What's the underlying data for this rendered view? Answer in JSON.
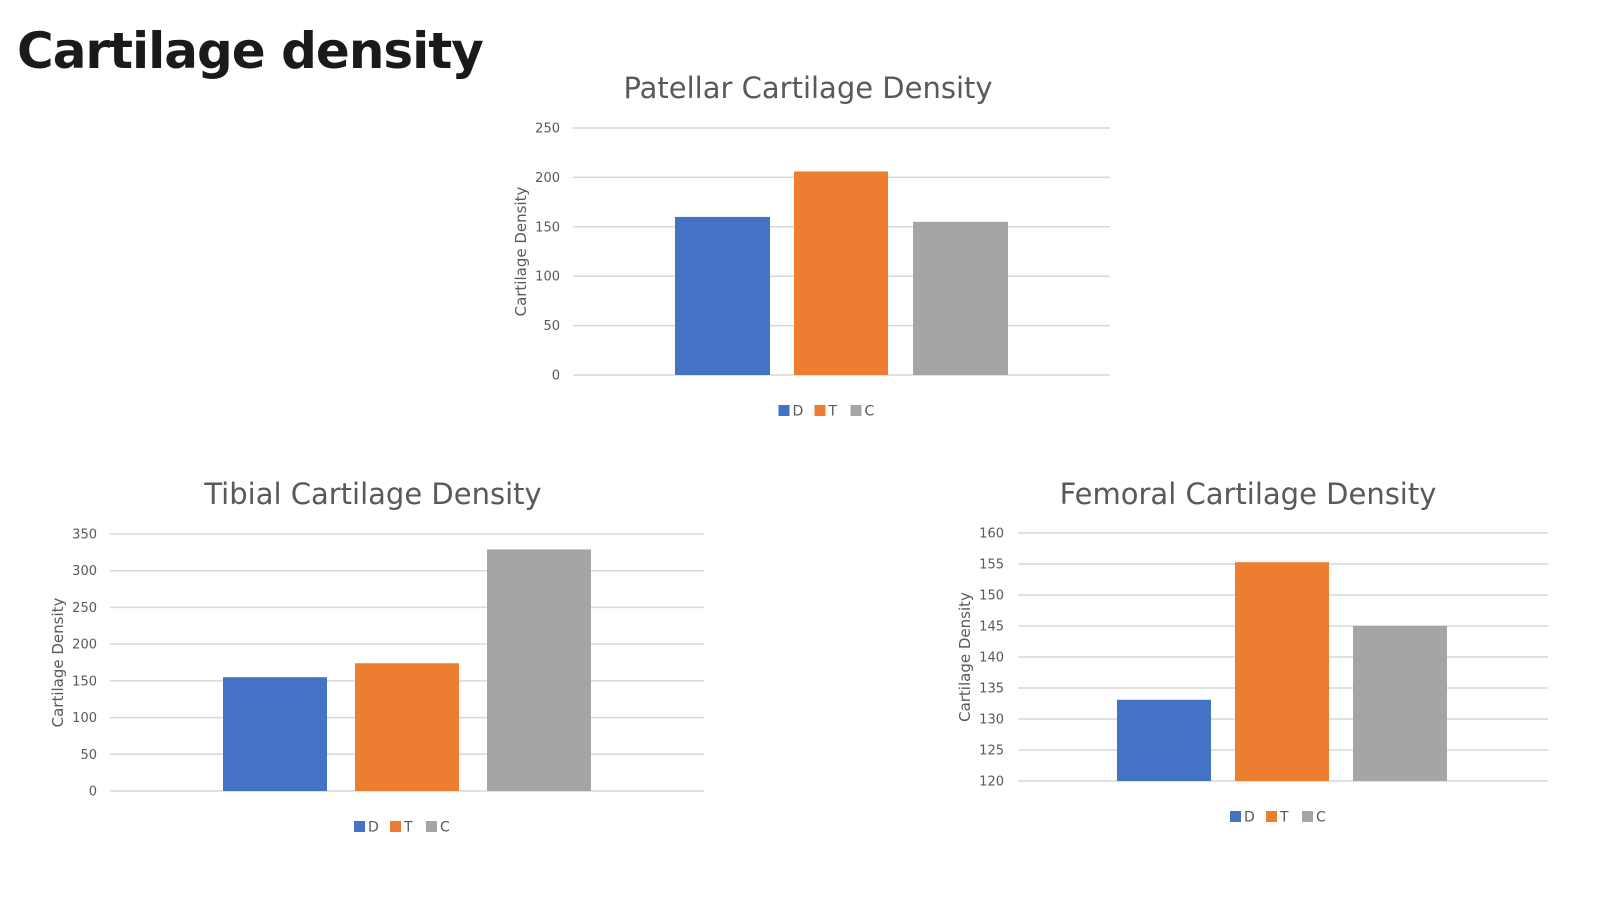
{
  "slide_title": "Cartilage density",
  "chart_data": [
    {
      "type": "bar",
      "title": "Patellar Cartilage Density",
      "ylabel": "Cartilage Density",
      "xlabel": "",
      "ylim": [
        0,
        250
      ],
      "yticks": [
        0,
        50,
        100,
        150,
        200,
        250
      ],
      "grid": true,
      "legend_placement": "bottom",
      "series": [
        {
          "name": "D",
          "values": [
            160
          ],
          "color": "#4472C4"
        },
        {
          "name": "T",
          "values": [
            206
          ],
          "color": "#ED7D31"
        },
        {
          "name": "C",
          "values": [
            155
          ],
          "color": "#A5A5A5"
        }
      ]
    },
    {
      "type": "bar",
      "title": "Tibial Cartilage Density",
      "ylabel": "Cartilage Density",
      "xlabel": "",
      "ylim": [
        0,
        350
      ],
      "yticks": [
        0,
        50,
        100,
        150,
        200,
        250,
        300,
        350
      ],
      "grid": true,
      "legend_placement": "bottom",
      "series": [
        {
          "name": "D",
          "values": [
            155
          ],
          "color": "#4472C4"
        },
        {
          "name": "T",
          "values": [
            174
          ],
          "color": "#ED7D31"
        },
        {
          "name": "C",
          "values": [
            329
          ],
          "color": "#A5A5A5"
        }
      ]
    },
    {
      "type": "bar",
      "title": "Femoral Cartilage Density",
      "ylabel": "Cartilage Density",
      "xlabel": "",
      "ylim": [
        120,
        160
      ],
      "yticks": [
        120,
        125,
        130,
        135,
        140,
        145,
        150,
        155,
        160
      ],
      "grid": true,
      "legend_placement": "bottom",
      "series": [
        {
          "name": "D",
          "values": [
            133.1
          ],
          "color": "#4472C4"
        },
        {
          "name": "T",
          "values": [
            155.3
          ],
          "color": "#ED7D31"
        },
        {
          "name": "C",
          "values": [
            145
          ],
          "color": "#A5A5A5"
        }
      ]
    }
  ]
}
